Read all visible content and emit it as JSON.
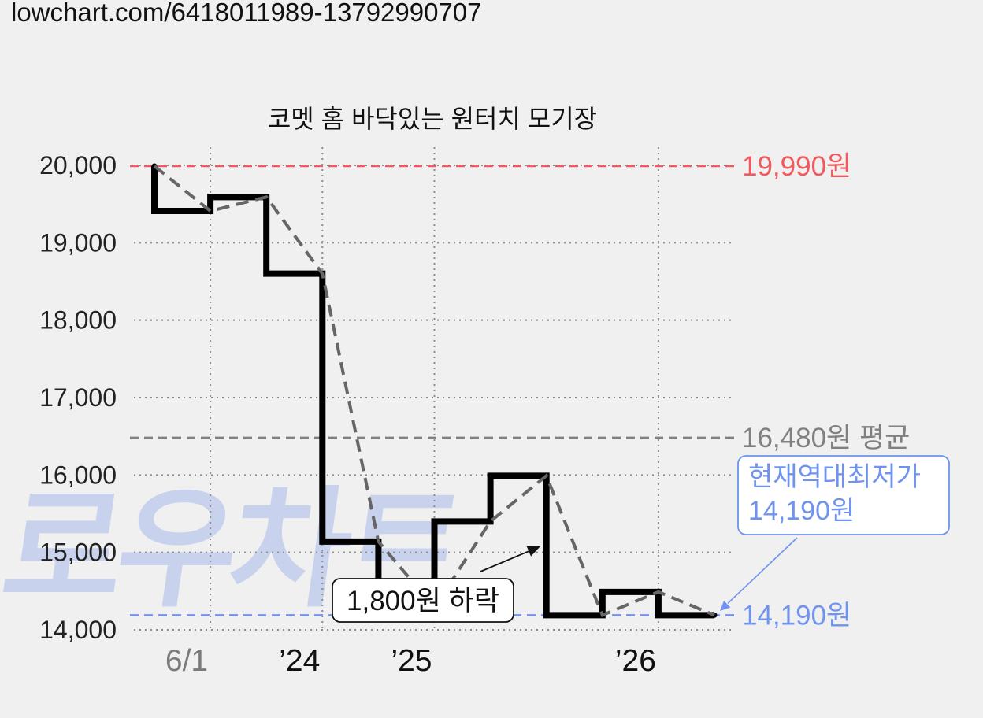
{
  "url": "lowchart.com/6418011989-13792990707",
  "watermark": "로우차트",
  "chart_data": {
    "type": "line",
    "title": "코멧 홈 바닥있는 원터치 모기장",
    "xlabel": "",
    "ylabel": "",
    "ylim": [
      14000,
      20000
    ],
    "grid": true,
    "yticks": [
      {
        "value": 20000,
        "label": "20,000"
      },
      {
        "value": 19000,
        "label": "19,000"
      },
      {
        "value": 18000,
        "label": "18,000"
      },
      {
        "value": 17000,
        "label": "17,000"
      },
      {
        "value": 16000,
        "label": "16,000"
      },
      {
        "value": 15000,
        "label": "15,000"
      },
      {
        "value": 14000,
        "label": "14,000"
      }
    ],
    "categories": [
      "",
      "6/1",
      "",
      "’24",
      "",
      "’25",
      "",
      "",
      "",
      "’26",
      ""
    ],
    "xtick_colors": {
      "6/1": "#7a7a7a",
      "’24": "#111111",
      "’25": "#111111",
      "’26": "#111111"
    },
    "series": [
      {
        "values": [
          19990,
          19410,
          19590,
          18600,
          15140,
          14290,
          15400,
          15990,
          14190,
          14490,
          14190
        ],
        "line_shape": "step",
        "color": "#000000",
        "trend_line": {
          "style": "dashed",
          "color": "#666666"
        }
      }
    ],
    "reference_lines": [
      {
        "value": 19990,
        "label": "19,990원",
        "color": "#ee5a5e"
      },
      {
        "value": 16480,
        "label": "16,480원 평균",
        "color": "#808080"
      },
      {
        "value": 14190,
        "label": "14,190원",
        "color": "#6f93ef"
      }
    ],
    "annotations": [
      {
        "text": "1,800원 하락",
        "from": 15990,
        "to": 14190
      }
    ],
    "callout": {
      "lines": [
        "현재역대최저가",
        "14,190원"
      ],
      "color": "#6f93ef"
    }
  }
}
